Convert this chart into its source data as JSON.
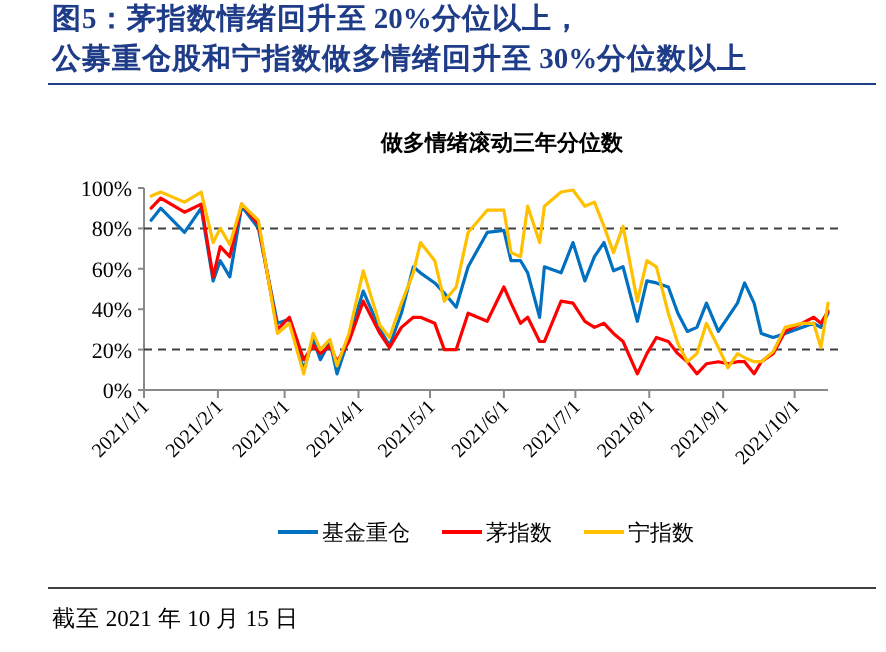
{
  "chart_data": {
    "type": "line",
    "title": "图5：茅指数情绪回升至 20%分位以上，公募重仓股和宁指数做多情绪回升至 30%分位数以上",
    "subtitle": "做多情绪滚动三年分位数",
    "x": [
      "2021-01-04",
      "2021-01-08",
      "2021-01-18",
      "2021-01-25",
      "2021-01-30",
      "2021-02-02",
      "2021-02-06",
      "2021-02-11",
      "2021-02-18",
      "2021-02-26",
      "2021-03-03",
      "2021-03-09",
      "2021-03-13",
      "2021-03-16",
      "2021-03-20",
      "2021-03-23",
      "2021-03-28",
      "2021-04-03",
      "2021-04-10",
      "2021-04-14",
      "2021-04-19",
      "2021-04-24",
      "2021-04-27",
      "2021-05-03",
      "2021-05-07",
      "2021-05-12",
      "2021-05-17",
      "2021-05-25",
      "2021-06-01",
      "2021-06-04",
      "2021-06-08",
      "2021-06-11",
      "2021-06-16",
      "2021-06-18",
      "2021-06-25",
      "2021-06-30",
      "2021-07-05",
      "2021-07-09",
      "2021-07-13",
      "2021-07-17",
      "2021-07-21",
      "2021-07-27",
      "2021-07-31",
      "2021-08-04",
      "2021-08-09",
      "2021-08-13",
      "2021-08-17",
      "2021-08-21",
      "2021-08-25",
      "2021-08-30",
      "2021-09-03",
      "2021-09-07",
      "2021-09-10",
      "2021-09-14",
      "2021-09-17",
      "2021-09-22",
      "2021-09-27",
      "2021-10-04",
      "2021-10-09",
      "2021-10-12",
      "2021-10-15"
    ],
    "series": [
      {
        "name": "基金重仓",
        "color": "#0070c0",
        "values": [
          84,
          90,
          78,
          90,
          54,
          64,
          56,
          91,
          80,
          33,
          35,
          10,
          25,
          15,
          24,
          8,
          26,
          49,
          30,
          22,
          38,
          61,
          58,
          53,
          48,
          41,
          61,
          78,
          79,
          64,
          64,
          58,
          36,
          61,
          58,
          73,
          54,
          66,
          73,
          59,
          61,
          34,
          54,
          53,
          51,
          38,
          29,
          31,
          43,
          29,
          36,
          43,
          53,
          43,
          28,
          26,
          28,
          31,
          33,
          31,
          38
        ]
      },
      {
        "name": "茅指数",
        "color": "#ff0000",
        "values": [
          90,
          95,
          88,
          92,
          56,
          71,
          66,
          92,
          82,
          30,
          36,
          15,
          22,
          18,
          22,
          14,
          24,
          44,
          28,
          21,
          31,
          36,
          36,
          33,
          20,
          20,
          38,
          34,
          51,
          43,
          33,
          36,
          24,
          24,
          44,
          43,
          34,
          31,
          33,
          28,
          24,
          8,
          18,
          26,
          24,
          18,
          14,
          8,
          13,
          14,
          13,
          14,
          14,
          8,
          14,
          18,
          29,
          33,
          36,
          33,
          39
        ]
      },
      {
        "name": "宁指数",
        "color": "#ffc000",
        "values": [
          96,
          98,
          93,
          98,
          73,
          80,
          72,
          92,
          84,
          28,
          33,
          8,
          28,
          20,
          25,
          12,
          28,
          59,
          32,
          26,
          43,
          58,
          73,
          64,
          44,
          51,
          78,
          89,
          89,
          68,
          66,
          91,
          73,
          91,
          98,
          99,
          91,
          93,
          81,
          68,
          81,
          44,
          64,
          61,
          38,
          23,
          14,
          18,
          33,
          21,
          11,
          18,
          16,
          14,
          14,
          19,
          31,
          33,
          33,
          21,
          43
        ]
      }
    ],
    "xlim": [
      "2021-01-01",
      "2021-10-15"
    ],
    "xticks": [
      {
        "value": "2021-01-01",
        "label": "2021/1/1"
      },
      {
        "value": "2021-02-01",
        "label": "2021/2/1"
      },
      {
        "value": "2021-03-01",
        "label": "2021/3/1"
      },
      {
        "value": "2021-04-01",
        "label": "2021/4/1"
      },
      {
        "value": "2021-05-01",
        "label": "2021/5/1"
      },
      {
        "value": "2021-06-01",
        "label": "2021/6/1"
      },
      {
        "value": "2021-07-01",
        "label": "2021/7/1"
      },
      {
        "value": "2021-08-01",
        "label": "2021/8/1"
      },
      {
        "value": "2021-09-01",
        "label": "2021/9/1"
      },
      {
        "value": "2021-10-01",
        "label": "2021/10/1"
      }
    ],
    "ylim": [
      0,
      100
    ],
    "yticks": [
      {
        "value": 0,
        "label": "0%"
      },
      {
        "value": 20,
        "label": "20%"
      },
      {
        "value": 40,
        "label": "40%"
      },
      {
        "value": 60,
        "label": "60%"
      },
      {
        "value": 80,
        "label": "80%"
      },
      {
        "value": 100,
        "label": "100%"
      }
    ],
    "ref_lines": [
      {
        "axis": "y",
        "value": 80,
        "color": "#404040",
        "line_style": "dashed"
      },
      {
        "axis": "y",
        "value": 20,
        "color": "#404040",
        "line_style": "dashed"
      }
    ],
    "legend": "bottom",
    "grid": false,
    "annotations": [
      "截至 2021 年 10 月 15 日"
    ]
  }
}
